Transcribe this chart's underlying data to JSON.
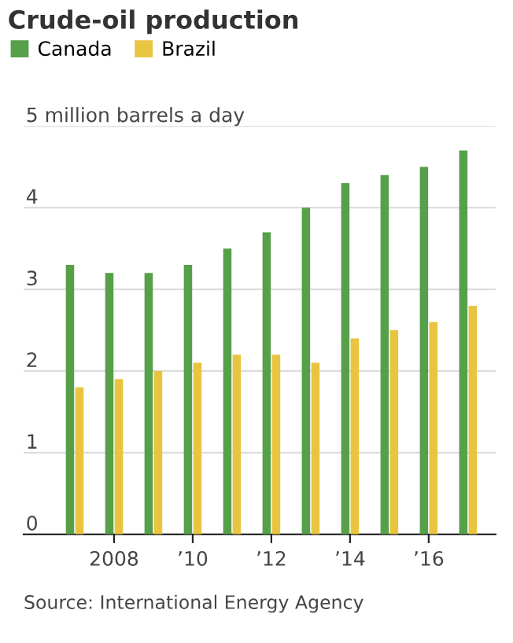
{
  "chart_data": {
    "type": "bar",
    "title": "Crude-oil production",
    "x": [
      2007,
      2008,
      2009,
      2010,
      2011,
      2012,
      2013,
      2014,
      2015,
      2016,
      2017
    ],
    "series": [
      {
        "name": "Canada",
        "color": "#56a04a",
        "values": [
          3.3,
          3.2,
          3.2,
          3.3,
          3.5,
          3.7,
          4.0,
          4.3,
          4.4,
          4.5,
          4.7
        ]
      },
      {
        "name": "Brazil",
        "color": "#e9c440",
        "values": [
          1.8,
          1.9,
          2.0,
          2.1,
          2.2,
          2.2,
          2.1,
          2.4,
          2.5,
          2.6,
          2.8
        ]
      }
    ],
    "xlim": [
      2005.7,
      2017.7
    ],
    "xticks": [
      2008,
      {
        "value": 2010,
        "label": "’10"
      },
      {
        "value": 2012,
        "label": "’12"
      },
      {
        "value": 2014,
        "label": "’14"
      },
      {
        "value": 2016,
        "label": "’16"
      }
    ],
    "ylim": [
      0,
      5
    ],
    "yticks": [
      0,
      1,
      2,
      3,
      4,
      {
        "value": 5,
        "label": "5 million barrels a day"
      }
    ],
    "grid": "y",
    "legend": "top left",
    "annotations": [
      "Source: International Energy Agency"
    ]
  }
}
